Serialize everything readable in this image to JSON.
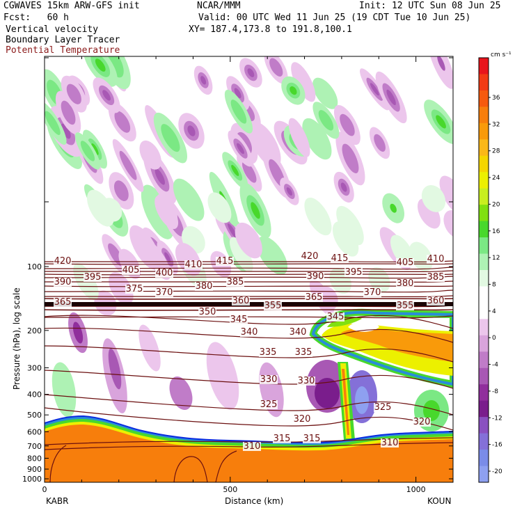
{
  "header": {
    "model": "CGWAVES 15km ARW-GFS init",
    "org": "NCAR/MMM",
    "init": "Init: 12 UTC Sun 08 Jun 25",
    "fcst": "Fcst:   60 h",
    "valid": "Valid: 00 UTC Wed 11 Jun 25 (19 CDT Tue 10 Jun 25)",
    "field1": "Vertical velocity",
    "field2": "Boundary Layer Tracer",
    "field3": "Potential Temperature",
    "xy": "XY= 187.4,173.8 to 191.8,100.1"
  },
  "chart_data": {
    "type": "heatmap",
    "xlabel": "Distance (km)",
    "ylabel": "Pressure (hPa), log scale",
    "x_ticks": [
      "0",
      "500",
      "1000"
    ],
    "x_range": [
      0,
      1100
    ],
    "y_ticks": [
      "100",
      "200",
      "300",
      "400",
      "500",
      "600",
      "700",
      "800",
      "900",
      "1000"
    ],
    "y_scale": "log",
    "endpoints": {
      "left": "KABR",
      "right": "KOUN"
    },
    "colorbar": {
      "unit": "cm s⁻¹",
      "tick_labels": [
        "36",
        "32",
        "28",
        "24",
        "20",
        "16",
        "12",
        "8",
        "4",
        "0",
        "-4",
        "-8",
        "-12",
        "-16",
        "-20"
      ],
      "colors": [
        "#e8141c",
        "#f23a14",
        "#f65a0e",
        "#f77e0c",
        "#f99a0a",
        "#fbb818",
        "#f5d600",
        "#ecf000",
        "#c8ee20",
        "#80e010",
        "#48d82c",
        "#7be884",
        "#aef2b4",
        "#e2f9e2",
        "#ffffff",
        "#ffffff",
        "#ecc6ec",
        "#d9a4dc",
        "#c07cc8",
        "#a858b4",
        "#902e9c",
        "#7a1d8c",
        "#8a50c0",
        "#8470d8",
        "#7a8ce8",
        "#8ea0f0"
      ]
    },
    "theta_contours_K": [
      310,
      315,
      320,
      325,
      330,
      335,
      340,
      345,
      350,
      355,
      360,
      365,
      370,
      375,
      380,
      385,
      390,
      395,
      400,
      405,
      410,
      415,
      420
    ],
    "theta_labels": [
      {
        "text": "420",
        "x": 90,
        "y": 379
      },
      {
        "text": "415",
        "x": 323,
        "y": 379
      },
      {
        "text": "420",
        "x": 445,
        "y": 372
      },
      {
        "text": "415",
        "x": 488,
        "y": 375
      },
      {
        "text": "410",
        "x": 278,
        "y": 384
      },
      {
        "text": "410",
        "x": 626,
        "y": 376
      },
      {
        "text": "405",
        "x": 188,
        "y": 392
      },
      {
        "text": "405",
        "x": 582,
        "y": 381
      },
      {
        "text": "400",
        "x": 236,
        "y": 396
      },
      {
        "text": "395",
        "x": 133,
        "y": 402
      },
      {
        "text": "395",
        "x": 508,
        "y": 395
      },
      {
        "text": "390",
        "x": 90,
        "y": 409
      },
      {
        "text": "390",
        "x": 453,
        "y": 401
      },
      {
        "text": "385",
        "x": 338,
        "y": 409
      },
      {
        "text": "385",
        "x": 626,
        "y": 402
      },
      {
        "text": "380",
        "x": 293,
        "y": 415
      },
      {
        "text": "380",
        "x": 582,
        "y": 411
      },
      {
        "text": "375",
        "x": 193,
        "y": 419
      },
      {
        "text": "370",
        "x": 236,
        "y": 424
      },
      {
        "text": "370",
        "x": 535,
        "y": 424
      },
      {
        "text": "365",
        "x": 90,
        "y": 438
      },
      {
        "text": "365",
        "x": 451,
        "y": 431
      },
      {
        "text": "360",
        "x": 346,
        "y": 436
      },
      {
        "text": "360",
        "x": 626,
        "y": 436
      },
      {
        "text": "355",
        "x": 392,
        "y": 443
      },
      {
        "text": "355",
        "x": 582,
        "y": 443
      },
      {
        "text": "350",
        "x": 298,
        "y": 452
      },
      {
        "text": "345",
        "x": 343,
        "y": 463
      },
      {
        "text": "345",
        "x": 482,
        "y": 459
      },
      {
        "text": "340",
        "x": 358,
        "y": 481
      },
      {
        "text": "340",
        "x": 428,
        "y": 481
      },
      {
        "text": "335",
        "x": 385,
        "y": 510
      },
      {
        "text": "335",
        "x": 436,
        "y": 510
      },
      {
        "text": "330",
        "x": 386,
        "y": 549
      },
      {
        "text": "330",
        "x": 440,
        "y": 551
      },
      {
        "text": "325",
        "x": 386,
        "y": 585
      },
      {
        "text": "325",
        "x": 550,
        "y": 589
      },
      {
        "text": "320",
        "x": 434,
        "y": 606
      },
      {
        "text": "320",
        "x": 606,
        "y": 610
      },
      {
        "text": "315",
        "x": 405,
        "y": 634
      },
      {
        "text": "315",
        "x": 448,
        "y": 634
      },
      {
        "text": "310",
        "x": 362,
        "y": 645
      },
      {
        "text": "310",
        "x": 560,
        "y": 640
      }
    ]
  }
}
